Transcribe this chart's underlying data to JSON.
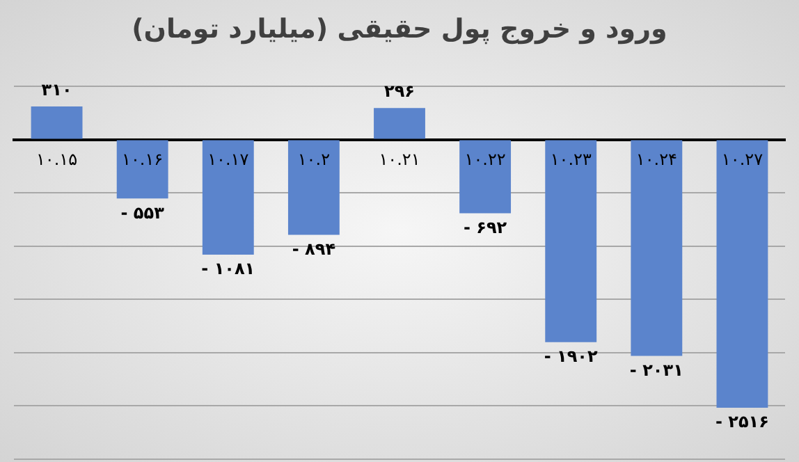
{
  "chart_data": {
    "type": "bar",
    "title": "ورود و خروج پول حقیقی (میلیارد تومان)",
    "categories": [
      "۱۰.۱۵",
      "۱۰.۱۶",
      "۱۰.۱۷",
      "۱۰.۲",
      "۱۰.۲۱",
      "۱۰.۲۲",
      "۱۰.۲۳",
      "۱۰.۲۴",
      "۱۰.۲۷"
    ],
    "values": [
      310,
      -553,
      -1081,
      -894,
      296,
      -692,
      -1902,
      -2031,
      -2516
    ],
    "value_labels": [
      "۳۱۰",
      "- ۵۵۳",
      "- ۱۰۸۱",
      "- ۸۹۴",
      "۲۹۶",
      "- ۶۹۲",
      "- ۱۹۰۲",
      "- ۲۰۳۱",
      "- ۲۵۱۶"
    ],
    "color": "#5b84cc",
    "ylim": [
      -3000,
      500
    ],
    "yticks": [
      {
        "value": 500,
        "label": null
      },
      {
        "value": 0,
        "label": null
      },
      {
        "value": -500,
        "label": null
      },
      {
        "value": -1000,
        "label": null
      },
      {
        "value": -1500,
        "label": null
      },
      {
        "value": -2000,
        "label": null
      },
      {
        "value": -2500,
        "label": null
      },
      {
        "value": -3000,
        "label": null
      }
    ],
    "grid": "y",
    "tick_labels": "x",
    "legend": false
  }
}
